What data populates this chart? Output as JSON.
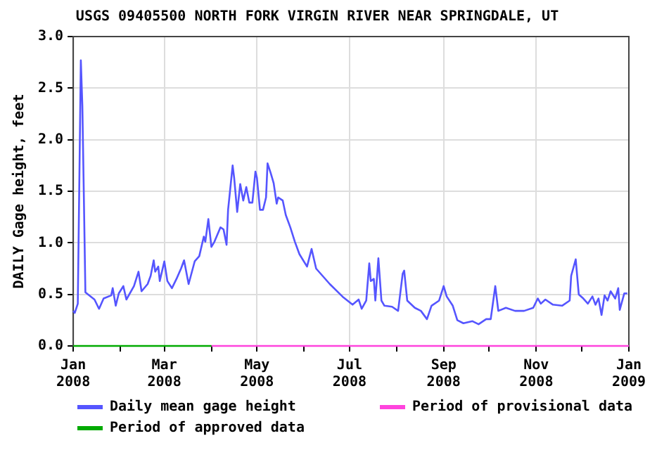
{
  "chart_data": {
    "type": "line",
    "title": "USGS 09405500 NORTH FORK VIRGIN RIVER NEAR SPRINGDALE, UT",
    "ylabel": "DAILY Gage height, feet",
    "series": [
      {
        "name": "Daily mean gage height",
        "color": "#5555ff",
        "x": [
          "2008-01-01",
          "2008-01-02",
          "2008-01-04",
          "2008-01-05",
          "2008-01-06",
          "2008-01-07",
          "2008-01-08",
          "2008-01-09",
          "2008-01-15",
          "2008-01-18",
          "2008-01-21",
          "2008-01-26",
          "2008-01-27",
          "2008-01-29",
          "2008-01-31",
          "2008-02-03",
          "2008-02-05",
          "2008-02-10",
          "2008-02-13",
          "2008-02-15",
          "2008-02-19",
          "2008-02-21",
          "2008-02-23",
          "2008-02-24",
          "2008-02-26",
          "2008-02-27",
          "2008-03-01",
          "2008-03-03",
          "2008-03-06",
          "2008-03-09",
          "2008-03-12",
          "2008-03-14",
          "2008-03-17",
          "2008-03-21",
          "2008-03-24",
          "2008-03-27",
          "2008-03-28",
          "2008-03-30",
          "2008-04-01",
          "2008-04-03",
          "2008-04-07",
          "2008-04-09",
          "2008-04-11",
          "2008-04-12",
          "2008-04-15",
          "2008-04-16",
          "2008-04-18",
          "2008-04-20",
          "2008-04-22",
          "2008-04-24",
          "2008-04-26",
          "2008-04-28",
          "2008-04-30",
          "2008-05-01",
          "2008-05-03",
          "2008-05-05",
          "2008-05-07",
          "2008-05-08",
          "2008-05-10",
          "2008-05-12",
          "2008-05-14",
          "2008-05-15",
          "2008-05-18",
          "2008-05-20",
          "2008-05-23",
          "2008-05-26",
          "2008-05-29",
          "2008-06-03",
          "2008-06-06",
          "2008-06-09",
          "2008-06-18",
          "2008-06-27",
          "2008-07-03",
          "2008-07-07",
          "2008-07-09",
          "2008-07-12",
          "2008-07-14",
          "2008-07-15",
          "2008-07-17",
          "2008-07-18",
          "2008-07-20",
          "2008-07-22",
          "2008-07-24",
          "2008-07-29",
          "2008-08-02",
          "2008-08-05",
          "2008-08-06",
          "2008-08-08",
          "2008-08-13",
          "2008-08-17",
          "2008-08-21",
          "2008-08-24",
          "2008-08-29",
          "2008-09-01",
          "2008-09-03",
          "2008-09-07",
          "2008-09-10",
          "2008-09-14",
          "2008-09-20",
          "2008-09-24",
          "2008-09-29",
          "2008-10-02",
          "2008-10-05",
          "2008-10-07",
          "2008-10-12",
          "2008-10-18",
          "2008-10-24",
          "2008-10-30",
          "2008-11-02",
          "2008-11-04",
          "2008-11-07",
          "2008-11-12",
          "2008-11-18",
          "2008-11-23",
          "2008-11-24",
          "2008-11-27",
          "2008-11-29",
          "2008-12-02",
          "2008-12-05",
          "2008-12-08",
          "2008-12-10",
          "2008-12-12",
          "2008-12-14",
          "2008-12-16",
          "2008-12-18",
          "2008-12-20",
          "2008-12-23",
          "2008-12-25",
          "2008-12-26",
          "2008-12-29",
          "2008-12-31"
        ],
        "values": [
          0.34,
          0.32,
          0.41,
          1.58,
          2.77,
          2.33,
          1.44,
          0.52,
          0.45,
          0.36,
          0.46,
          0.49,
          0.56,
          0.39,
          0.51,
          0.58,
          0.45,
          0.58,
          0.72,
          0.53,
          0.6,
          0.68,
          0.83,
          0.72,
          0.77,
          0.63,
          0.82,
          0.63,
          0.56,
          0.65,
          0.75,
          0.83,
          0.6,
          0.82,
          0.87,
          1.06,
          1.01,
          1.23,
          0.96,
          1.01,
          1.15,
          1.13,
          0.98,
          1.32,
          1.75,
          1.63,
          1.3,
          1.57,
          1.41,
          1.54,
          1.39,
          1.39,
          1.69,
          1.63,
          1.32,
          1.32,
          1.44,
          1.77,
          1.68,
          1.58,
          1.38,
          1.44,
          1.41,
          1.27,
          1.15,
          1.01,
          0.89,
          0.77,
          0.94,
          0.75,
          0.6,
          0.47,
          0.4,
          0.45,
          0.36,
          0.44,
          0.8,
          0.63,
          0.65,
          0.44,
          0.85,
          0.44,
          0.39,
          0.38,
          0.34,
          0.7,
          0.73,
          0.44,
          0.37,
          0.34,
          0.26,
          0.39,
          0.44,
          0.58,
          0.48,
          0.39,
          0.25,
          0.22,
          0.24,
          0.21,
          0.26,
          0.26,
          0.58,
          0.34,
          0.37,
          0.34,
          0.34,
          0.37,
          0.46,
          0.41,
          0.45,
          0.4,
          0.39,
          0.44,
          0.68,
          0.84,
          0.5,
          0.46,
          0.41,
          0.48,
          0.4,
          0.46,
          0.3,
          0.49,
          0.44,
          0.53,
          0.46,
          0.56,
          0.35,
          0.51,
          0.51
        ]
      },
      {
        "name": "Period of approved data",
        "color": "#00aa00",
        "x": [
          "2008-01-01",
          "2008-04-01"
        ],
        "values": [
          0,
          0
        ]
      },
      {
        "name": "Period of provisional data",
        "color": "#ff44dd",
        "x": [
          "2008-04-01",
          "2009-01-01"
        ],
        "values": [
          0,
          0
        ]
      }
    ],
    "xlim": [
      "2008-01-01",
      "2009-01-01"
    ],
    "xticks": [
      {
        "value": "2008-01-01",
        "label": "Jan 2008"
      },
      {
        "value": "2008-02-01",
        "label": null
      },
      {
        "value": "2008-03-01",
        "label": "Mar 2008"
      },
      {
        "value": "2008-04-01",
        "label": null
      },
      {
        "value": "2008-05-01",
        "label": "May 2008"
      },
      {
        "value": "2008-06-01",
        "label": null
      },
      {
        "value": "2008-07-01",
        "label": "Jul 2008"
      },
      {
        "value": "2008-08-01",
        "label": null
      },
      {
        "value": "2008-09-01",
        "label": "Sep 2008"
      },
      {
        "value": "2008-10-01",
        "label": null
      },
      {
        "value": "2008-11-01",
        "label": "Nov 2008"
      },
      {
        "value": "2008-12-01",
        "label": null
      },
      {
        "value": "2009-01-01",
        "label": "Jan 2009"
      }
    ],
    "ylim": [
      0,
      3
    ],
    "yticks": [
      {
        "value": 0,
        "label": "0.0"
      },
      {
        "value": 0.5,
        "label": "0.5"
      },
      {
        "value": 1,
        "label": "1.0"
      },
      {
        "value": 1.5,
        "label": "1.5"
      },
      {
        "value": 2,
        "label": "2.0"
      },
      {
        "value": 2.5,
        "label": "2.5"
      },
      {
        "value": 3,
        "label": "3.0"
      }
    ],
    "grid": true,
    "legend": "bottom",
    "marker": "none",
    "line_style": "solid"
  }
}
